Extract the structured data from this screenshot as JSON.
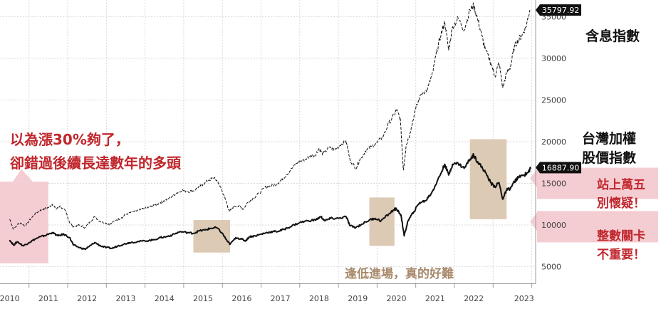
{
  "chart_data": {
    "type": "line",
    "x_labels": [
      "2010",
      "2011",
      "2012",
      "2013",
      "2014",
      "2015",
      "2016",
      "2017",
      "2018",
      "2019",
      "2020",
      "2021",
      "2022",
      "2023"
    ],
    "y_ticks": [
      5000,
      10000,
      15000,
      20000,
      25000,
      30000,
      35000
    ],
    "ylim": [
      3000,
      37000
    ],
    "grid": true,
    "series": [
      {
        "name": "含息指數",
        "style": "dashed",
        "last_value": "35797.92",
        "points": [
          [
            2010.0,
            10700
          ],
          [
            2010.1,
            9500
          ],
          [
            2010.25,
            10300
          ],
          [
            2010.4,
            9900
          ],
          [
            2010.55,
            10800
          ],
          [
            2010.7,
            11500
          ],
          [
            2010.85,
            11900
          ],
          [
            2011.0,
            12100
          ],
          [
            2011.1,
            12500
          ],
          [
            2011.2,
            11900
          ],
          [
            2011.3,
            12300
          ],
          [
            2011.45,
            11600
          ],
          [
            2011.55,
            10300
          ],
          [
            2011.65,
            9800
          ],
          [
            2011.8,
            10000
          ],
          [
            2011.95,
            9700
          ],
          [
            2012.1,
            10500
          ],
          [
            2012.2,
            11000
          ],
          [
            2012.35,
            10400
          ],
          [
            2012.5,
            10200
          ],
          [
            2012.6,
            10100
          ],
          [
            2012.75,
            10600
          ],
          [
            2012.9,
            10900
          ],
          [
            2013.0,
            11300
          ],
          [
            2013.2,
            11600
          ],
          [
            2013.35,
            11800
          ],
          [
            2013.5,
            12000
          ],
          [
            2013.6,
            12100
          ],
          [
            2013.75,
            12400
          ],
          [
            2013.9,
            12700
          ],
          [
            2014.0,
            12900
          ],
          [
            2014.15,
            13300
          ],
          [
            2014.3,
            13800
          ],
          [
            2014.45,
            14200
          ],
          [
            2014.6,
            14000
          ],
          [
            2014.75,
            14100
          ],
          [
            2014.9,
            14600
          ],
          [
            2015.0,
            14900
          ],
          [
            2015.15,
            15400
          ],
          [
            2015.3,
            15700
          ],
          [
            2015.45,
            14600
          ],
          [
            2015.6,
            12800
          ],
          [
            2015.68,
            11600
          ],
          [
            2015.8,
            12300
          ],
          [
            2015.95,
            12200
          ],
          [
            2016.05,
            11900
          ],
          [
            2016.15,
            12700
          ],
          [
            2016.3,
            13200
          ],
          [
            2016.45,
            13800
          ],
          [
            2016.6,
            14500
          ],
          [
            2016.75,
            14700
          ],
          [
            2016.9,
            14900
          ],
          [
            2017.0,
            15300
          ],
          [
            2017.15,
            16000
          ],
          [
            2017.3,
            16800
          ],
          [
            2017.45,
            17500
          ],
          [
            2017.6,
            17800
          ],
          [
            2017.75,
            18200
          ],
          [
            2017.9,
            18400
          ],
          [
            2018.0,
            19200
          ],
          [
            2018.1,
            18500
          ],
          [
            2018.25,
            19300
          ],
          [
            2018.4,
            19000
          ],
          [
            2018.55,
            19600
          ],
          [
            2018.7,
            20100
          ],
          [
            2018.8,
            17800
          ],
          [
            2018.95,
            16800
          ],
          [
            2019.05,
            17800
          ],
          [
            2019.2,
            18900
          ],
          [
            2019.35,
            19400
          ],
          [
            2019.5,
            19900
          ],
          [
            2019.65,
            20600
          ],
          [
            2019.8,
            22200
          ],
          [
            2019.95,
            23300
          ],
          [
            2020.0,
            23800
          ],
          [
            2020.1,
            22800
          ],
          [
            2020.18,
            16600
          ],
          [
            2020.25,
            19500
          ],
          [
            2020.35,
            21000
          ],
          [
            2020.5,
            24000
          ],
          [
            2020.65,
            25800
          ],
          [
            2020.8,
            26200
          ],
          [
            2020.95,
            28500
          ],
          [
            2021.05,
            31000
          ],
          [
            2021.15,
            32800
          ],
          [
            2021.25,
            34400
          ],
          [
            2021.35,
            31000
          ],
          [
            2021.45,
            33800
          ],
          [
            2021.6,
            34800
          ],
          [
            2021.75,
            33400
          ],
          [
            2021.9,
            35800
          ],
          [
            2022.0,
            36300
          ],
          [
            2022.1,
            34700
          ],
          [
            2022.2,
            32800
          ],
          [
            2022.3,
            31000
          ],
          [
            2022.45,
            29400
          ],
          [
            2022.55,
            27800
          ],
          [
            2022.65,
            29500
          ],
          [
            2022.75,
            26500
          ],
          [
            2022.85,
            28200
          ],
          [
            2022.95,
            29000
          ],
          [
            2023.05,
            31400
          ],
          [
            2023.15,
            32200
          ],
          [
            2023.25,
            32800
          ],
          [
            2023.35,
            33800
          ],
          [
            2023.45,
            35797.92
          ]
        ]
      },
      {
        "name": "台灣加權股價指數",
        "style": "solid",
        "last_value": "16887.90",
        "points": [
          [
            2010.0,
            8200
          ],
          [
            2010.1,
            7600
          ],
          [
            2010.2,
            8000
          ],
          [
            2010.35,
            7500
          ],
          [
            2010.5,
            7900
          ],
          [
            2010.65,
            8300
          ],
          [
            2010.8,
            8600
          ],
          [
            2010.95,
            8800
          ],
          [
            2011.1,
            9100
          ],
          [
            2011.25,
            8700
          ],
          [
            2011.4,
            8900
          ],
          [
            2011.55,
            8500
          ],
          [
            2011.65,
            7600
          ],
          [
            2011.8,
            7300
          ],
          [
            2011.95,
            7100
          ],
          [
            2012.05,
            7400
          ],
          [
            2012.2,
            7900
          ],
          [
            2012.35,
            7500
          ],
          [
            2012.5,
            7300
          ],
          [
            2012.65,
            7200
          ],
          [
            2012.8,
            7500
          ],
          [
            2012.95,
            7700
          ],
          [
            2013.1,
            7900
          ],
          [
            2013.3,
            8000
          ],
          [
            2013.5,
            8100
          ],
          [
            2013.7,
            8200
          ],
          [
            2013.9,
            8500
          ],
          [
            2014.05,
            8600
          ],
          [
            2014.2,
            8800
          ],
          [
            2014.4,
            9200
          ],
          [
            2014.6,
            9100
          ],
          [
            2014.75,
            9000
          ],
          [
            2014.9,
            9300
          ],
          [
            2015.05,
            9400
          ],
          [
            2015.2,
            9600
          ],
          [
            2015.35,
            9700
          ],
          [
            2015.5,
            9000
          ],
          [
            2015.62,
            8100
          ],
          [
            2015.7,
            7700
          ],
          [
            2015.85,
            8500
          ],
          [
            2016.0,
            8300
          ],
          [
            2016.1,
            8100
          ],
          [
            2016.2,
            8600
          ],
          [
            2016.35,
            8700
          ],
          [
            2016.5,
            8900
          ],
          [
            2016.65,
            9100
          ],
          [
            2016.8,
            9200
          ],
          [
            2016.95,
            9250
          ],
          [
            2017.1,
            9500
          ],
          [
            2017.3,
            9900
          ],
          [
            2017.5,
            10300
          ],
          [
            2017.7,
            10500
          ],
          [
            2017.9,
            10600
          ],
          [
            2018.05,
            11000
          ],
          [
            2018.15,
            10500
          ],
          [
            2018.3,
            10800
          ],
          [
            2018.5,
            10800
          ],
          [
            2018.7,
            11000
          ],
          [
            2018.8,
            9900
          ],
          [
            2018.95,
            9700
          ],
          [
            2019.1,
            10100
          ],
          [
            2019.3,
            10600
          ],
          [
            2019.45,
            10800
          ],
          [
            2019.6,
            10500
          ],
          [
            2019.8,
            11300
          ],
          [
            2019.95,
            11900
          ],
          [
            2020.0,
            11900
          ],
          [
            2020.12,
            11200
          ],
          [
            2020.2,
            8700
          ],
          [
            2020.3,
            10500
          ],
          [
            2020.45,
            11600
          ],
          [
            2020.6,
            12700
          ],
          [
            2020.75,
            12900
          ],
          [
            2020.9,
            13800
          ],
          [
            2021.0,
            14700
          ],
          [
            2021.15,
            16200
          ],
          [
            2021.25,
            17300
          ],
          [
            2021.35,
            16000
          ],
          [
            2021.45,
            17300
          ],
          [
            2021.6,
            17400
          ],
          [
            2021.75,
            16800
          ],
          [
            2021.9,
            17900
          ],
          [
            2022.0,
            18400
          ],
          [
            2022.1,
            17600
          ],
          [
            2022.2,
            17000
          ],
          [
            2022.3,
            16300
          ],
          [
            2022.45,
            15000
          ],
          [
            2022.55,
            14600
          ],
          [
            2022.65,
            15100
          ],
          [
            2022.75,
            13100
          ],
          [
            2022.85,
            14200
          ],
          [
            2022.95,
            14400
          ],
          [
            2023.05,
            15200
          ],
          [
            2023.15,
            15700
          ],
          [
            2023.3,
            16000
          ],
          [
            2023.4,
            16300
          ],
          [
            2023.48,
            16887.9
          ]
        ]
      }
    ],
    "annotations": {
      "main_callout": [
        "以為漲30%夠了，",
        "卻錯過後續長達數年的多頭"
      ],
      "tan_callout": "逢低進場，真的好難",
      "label_total_return": "含息指數",
      "label_taiex": [
        "台灣加權",
        "股價指數"
      ],
      "callout_15000": [
        "站上萬五",
        "別懷疑！"
      ],
      "callout_10000": [
        "整數關卡",
        "不重要！"
      ]
    },
    "highlight_boxes": [
      {
        "color": "#f4cdd2",
        "x_from": 2009.75,
        "x_to": 2011.0,
        "y_from": 5400,
        "y_to": 15200
      },
      {
        "color": "#dccab5",
        "x_from": 2014.75,
        "x_to": 2015.7,
        "y_from": 6700,
        "y_to": 10600
      },
      {
        "color": "#dccab5",
        "x_from": 2019.3,
        "x_to": 2019.95,
        "y_from": 7500,
        "y_to": 13300
      },
      {
        "color": "#dccab5",
        "x_from": 2021.9,
        "x_to": 2022.85,
        "y_from": 10700,
        "y_to": 20300
      }
    ],
    "colors": {
      "pink": "#f4cdd2",
      "tan": "#dccab5",
      "red_text": "#c0272d",
      "tan_text": "#a8896a",
      "line": "#111111",
      "grid": "#d9d9d9"
    }
  }
}
